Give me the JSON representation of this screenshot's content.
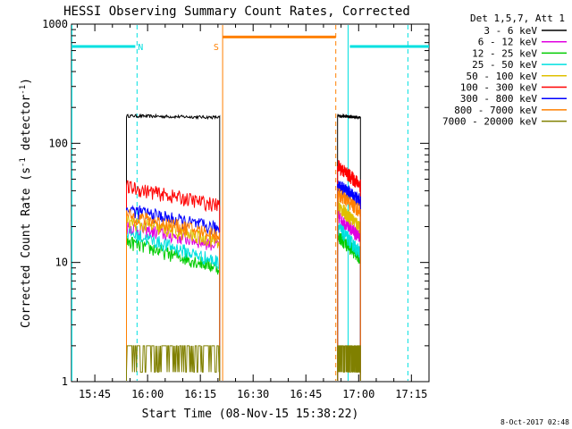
{
  "chart_data": {
    "type": "line",
    "title": "HESSI Observing Summary Count Rates, Corrected",
    "xlabel": "Start Time (08-Nov-15 15:38:22)",
    "ylabel_main": "Corrected Count Rate (s",
    "ylabel_sup1": "-1",
    "ylabel_mid": " detector",
    "ylabel_sup2": "-1",
    "ylabel_end": ")",
    "y_scale": "log",
    "ylim": [
      1,
      1000
    ],
    "xlim": [
      "15:38:22",
      "17:20:00"
    ],
    "x_ticks": [
      "15:45",
      "16:00",
      "16:15",
      "16:30",
      "16:45",
      "17:00",
      "17:15"
    ],
    "y_ticks": [
      "1",
      "10",
      "100",
      "1000"
    ],
    "timestamp": "8-Oct-2017 02:48",
    "legend": {
      "title": "Det 1,5,7, Att 1",
      "placement": "top-right",
      "entries": [
        {
          "label": "3 - 6 keV",
          "color": "#000000"
        },
        {
          "label": "6 - 12 keV",
          "color": "#e000e0"
        },
        {
          "label": "12 - 25 keV",
          "color": "#00cc00"
        },
        {
          "label": "25 - 50 keV",
          "color": "#00e0e0"
        },
        {
          "label": "50 - 100 keV",
          "color": "#e0c000"
        },
        {
          "label": "100 - 300 keV",
          "color": "#ff0000"
        },
        {
          "label": "300 - 800 keV",
          "color": "#0000ff"
        },
        {
          "label": "800 - 7000 keV",
          "color": "#ff8000"
        },
        {
          "label": "7000 - 20000 keV",
          "color": "#808000"
        }
      ]
    },
    "flag_bars": [
      {
        "name": "night",
        "label": "",
        "color": "#00e0e0",
        "y": 650,
        "segments": [
          [
            "15:38:22",
            "15:56:30"
          ],
          [
            "16:57:30",
            "17:20:00"
          ]
        ]
      },
      {
        "name": "saa",
        "label": "",
        "color": "#ff8000",
        "y": 780,
        "segments": [
          [
            "16:21:20",
            "16:53:30"
          ]
        ]
      }
    ],
    "flag_markers": [
      {
        "label": "N",
        "color": "#00e0e0",
        "x": "15:58:00"
      },
      {
        "label": "S",
        "color": "#ff8000",
        "x": "16:19:30"
      }
    ],
    "vlines": [
      {
        "x": "15:38:22",
        "color": "#00e0e0",
        "style": "solid"
      },
      {
        "x": "15:57:00",
        "color": "#00e0e0",
        "style": "dashed"
      },
      {
        "x": "16:21:20",
        "color": "#ff8000",
        "style": "solid"
      },
      {
        "x": "16:53:30",
        "color": "#ff8000",
        "style": "dashed"
      },
      {
        "x": "16:57:00",
        "color": "#00e0e0",
        "style": "solid"
      },
      {
        "x": "17:14:00",
        "color": "#00e0e0",
        "style": "dashed"
      }
    ],
    "segments": [
      {
        "start": "15:54:00",
        "end": "16:20:30"
      },
      {
        "start": "16:54:00",
        "end": "17:00:30"
      }
    ],
    "series": [
      {
        "name": "3 - 6 keV",
        "color": "#000000",
        "levels": [
          [
            170,
            165
          ],
          [
            170,
            165
          ]
        ]
      },
      {
        "name": "6 - 12 keV",
        "color": "#e000e0",
        "levels": [
          [
            20,
            14
          ],
          [
            25,
            16
          ]
        ]
      },
      {
        "name": "12 - 25 keV",
        "color": "#00cc00",
        "levels": [
          [
            15,
            9
          ],
          [
            17,
            11
          ]
        ]
      },
      {
        "name": "25 - 50 keV",
        "color": "#00e0e0",
        "levels": [
          [
            18,
            10
          ],
          [
            20,
            12
          ]
        ]
      },
      {
        "name": "50 - 100 keV",
        "color": "#e0c000",
        "levels": [
          [
            22,
            15
          ],
          [
            30,
            20
          ]
        ]
      },
      {
        "name": "100 - 300 keV",
        "color": "#ff0000",
        "levels": [
          [
            43,
            30
          ],
          [
            65,
            45
          ]
        ]
      },
      {
        "name": "300 - 800 keV",
        "color": "#0000ff",
        "levels": [
          [
            28,
            19
          ],
          [
            45,
            33
          ]
        ]
      },
      {
        "name": "800 - 7000 keV",
        "color": "#ff8000",
        "levels": [
          [
            25,
            17
          ],
          [
            38,
            27
          ]
        ]
      },
      {
        "name": "7000 - 20000 keV",
        "color": "#808000",
        "levels": [
          [
            1.5,
            1.5
          ],
          [
            1.5,
            1.5
          ]
        ]
      }
    ]
  }
}
